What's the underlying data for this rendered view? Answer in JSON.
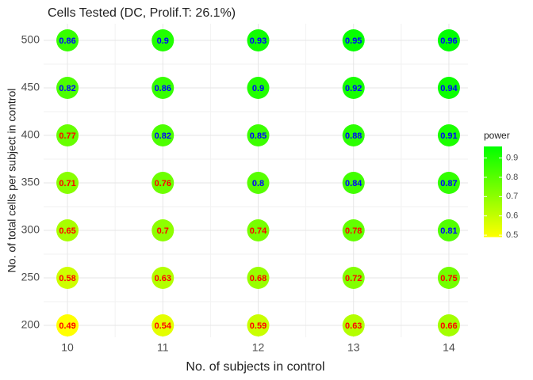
{
  "chart_data": {
    "type": "heatmap",
    "title": "Cells Tested (DC, Prolif.T: 26.1%)",
    "x_label": "No. of subjects in control",
    "y_label": "No. of total cells per subject in control",
    "x": [
      10,
      11,
      12,
      13,
      14
    ],
    "y": [
      200,
      250,
      300,
      350,
      400,
      450,
      500
    ],
    "values": [
      [
        0.49,
        0.54,
        0.59,
        0.63,
        0.66
      ],
      [
        0.58,
        0.63,
        0.68,
        0.72,
        0.75
      ],
      [
        0.65,
        0.7,
        0.74,
        0.78,
        0.81
      ],
      [
        0.71,
        0.76,
        0.8,
        0.84,
        0.87
      ],
      [
        0.77,
        0.82,
        0.85,
        0.88,
        0.91
      ],
      [
        0.82,
        0.86,
        0.9,
        0.92,
        0.94
      ],
      [
        0.86,
        0.9,
        0.93,
        0.95,
        0.96
      ]
    ],
    "value_label_colors": [
      [
        "#ff0000",
        "#ff0000",
        "#ff0000",
        "#ff0000",
        "#ff0000"
      ],
      [
        "#ff0000",
        "#ff0000",
        "#ff0000",
        "#ff0000",
        "#ff0000"
      ],
      [
        "#ff0000",
        "#ff0000",
        "#ff0000",
        "#ff0000",
        "#0000ff"
      ],
      [
        "#ff0000",
        "#ff0000",
        "#0000ff",
        "#0000ff",
        "#0000ff"
      ],
      [
        "#ff0000",
        "#0000ff",
        "#0000ff",
        "#0000ff",
        "#0000ff"
      ],
      [
        "#0000ff",
        "#0000ff",
        "#0000ff",
        "#0000ff",
        "#0000ff"
      ],
      [
        "#0000ff",
        "#0000ff",
        "#0000ff",
        "#0000ff",
        "#0000ff"
      ]
    ],
    "xlim": [
      9.75,
      14.2
    ],
    "xticks": [
      10,
      11,
      12,
      13,
      14
    ],
    "ylim": [
      187.5,
      517.5
    ],
    "yticks": [
      200,
      250,
      300,
      350,
      400,
      450,
      500
    ],
    "grid": true,
    "legend_title": "power",
    "colorscale": [
      "#ffff00",
      "#00ff00"
    ],
    "colorlim": [
      0.49,
      0.96
    ],
    "colorbar_ticks": [
      0.5,
      0.6,
      0.7,
      0.8,
      0.9
    ]
  }
}
